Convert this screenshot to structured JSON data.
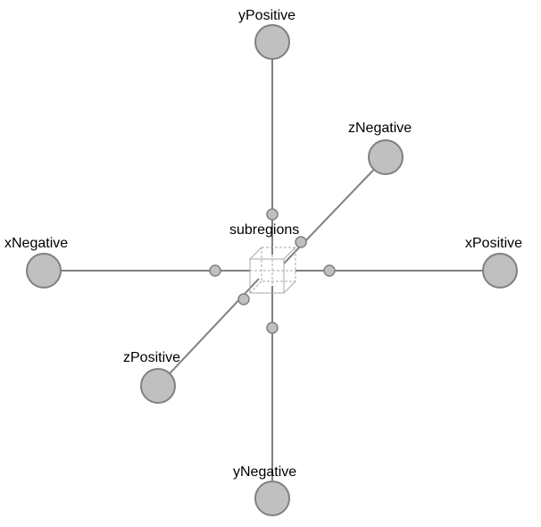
{
  "diagram": {
    "center": {
      "label": "subregions"
    },
    "nodes": [
      {
        "id": "yPositive",
        "label": "yPositive"
      },
      {
        "id": "zNegative",
        "label": "zNegative"
      },
      {
        "id": "xNegative",
        "label": "xNegative"
      },
      {
        "id": "xPositive",
        "label": "xPositive"
      },
      {
        "id": "zPositive",
        "label": "zPositive"
      },
      {
        "id": "yNegative",
        "label": "yNegative"
      }
    ],
    "colors": {
      "node_fill": "#c0c0c0",
      "node_stroke": "#808080",
      "edge": "#808080",
      "text": "#000000"
    }
  }
}
